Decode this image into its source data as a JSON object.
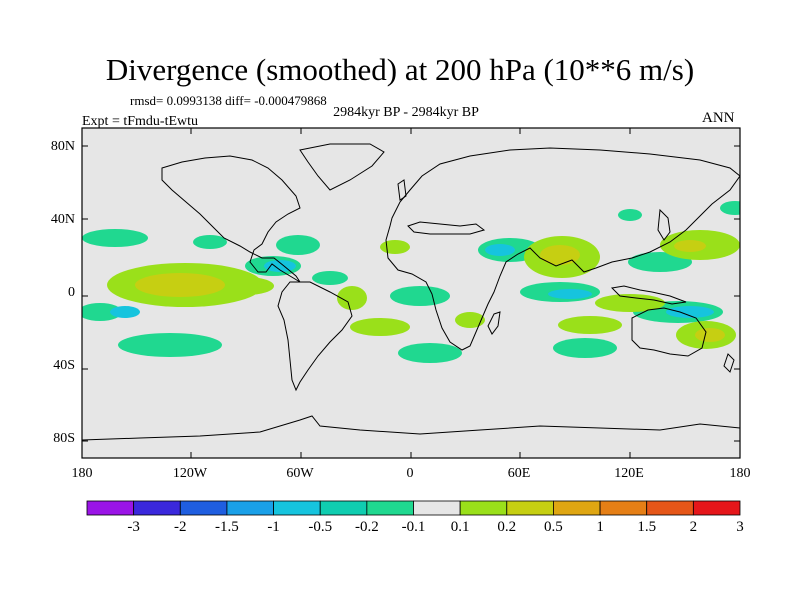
{
  "title": "Divergence (smoothed) at 200 hPa (10**6 m/s)",
  "stats": "rmsd= 0.0993138 diff= -0.000479868",
  "experiment": "Expt = tFmdu-tEwtu",
  "period": "2984kyr BP - 2984kyr BP",
  "season": "ANN",
  "lat_labels": [
    "80N",
    "40N",
    "0",
    "40S",
    "80S"
  ],
  "lon_labels": [
    "180",
    "120W",
    "60W",
    "0",
    "60E",
    "120E",
    "180"
  ],
  "colorbar": {
    "labels": [
      "-3",
      "-2",
      "-1.5",
      "-1",
      "-0.5",
      "-0.2",
      "-0.1",
      "0.1",
      "0.2",
      "0.5",
      "1",
      "1.5",
      "2",
      "3"
    ],
    "colors": [
      "#9a14e6",
      "#3a28dc",
      "#1f5ee0",
      "#1aa0e8",
      "#16c4de",
      "#10cdb0",
      "#20d890",
      "#e6e6e6",
      "#9ae01a",
      "#c6cf12",
      "#dfa612",
      "#e57f16",
      "#e55618",
      "#e5161a"
    ]
  },
  "map": {
    "ocean_color": "#e6e6e6",
    "coast_color": "#000000"
  }
}
